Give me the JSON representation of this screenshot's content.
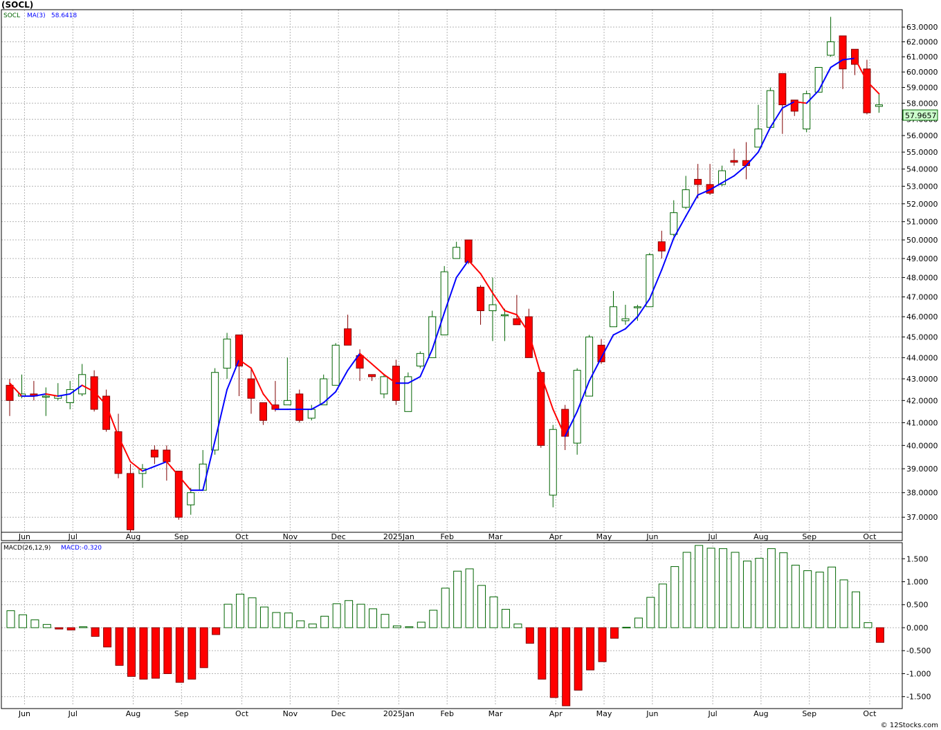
{
  "header": {
    "symbol_title": "(SOCL)"
  },
  "footer": {
    "credit": "© 12Stocks.com"
  },
  "colors": {
    "up": "#006400",
    "down": "#ff0000",
    "ma_up": "#0000ff",
    "ma_down": "#ff0000",
    "grid": "#b4b4b4",
    "last_price_bg": "#ccffcc"
  },
  "chart_data": [
    {
      "type": "candlestick",
      "title": "",
      "legend": {
        "ticker": "SOCL",
        "ma_label": "MA(3)",
        "ma_value": "58.6418"
      },
      "last_price_label": "57.9657",
      "y_ticks": [
        "37.0000",
        "38.0000",
        "39.0000",
        "40.0000",
        "41.0000",
        "42.0000",
        "43.0000",
        "44.0000",
        "45.0000",
        "46.0000",
        "47.0000",
        "48.0000",
        "49.0000",
        "50.0000",
        "51.0000",
        "52.0000",
        "53.0000",
        "54.0000",
        "55.0000",
        "56.0000",
        "57.0000",
        "58.0000",
        "59.0000",
        "60.0000",
        "61.0000",
        "62.0000",
        "63.0000"
      ],
      "y_scale": "log",
      "ylim": [
        36.4,
        64.2
      ],
      "x_labels": [
        "Jun",
        "Jul",
        "Aug",
        "Sep",
        "Oct",
        "Nov",
        "Dec",
        "2025Jan",
        "Feb",
        "Mar",
        "Apr",
        "May",
        "Jun",
        "Jul",
        "Aug",
        "Sep",
        "Oct"
      ],
      "x_label_bar_index": [
        1,
        5,
        10,
        14,
        19,
        23,
        27,
        32,
        36,
        40,
        45,
        49,
        53,
        58,
        62,
        66,
        71
      ],
      "bars": [
        {
          "o": 42.7,
          "h": 43.0,
          "l": 41.3,
          "c": 42.0
        },
        {
          "o": 42.2,
          "h": 43.2,
          "l": 42.1,
          "c": 42.3
        },
        {
          "o": 42.3,
          "h": 42.9,
          "l": 42.0,
          "c": 42.2
        },
        {
          "o": 42.2,
          "h": 42.6,
          "l": 41.3,
          "c": 42.2
        },
        {
          "o": 42.1,
          "h": 42.8,
          "l": 42.0,
          "c": 42.2
        },
        {
          "o": 41.9,
          "h": 42.9,
          "l": 41.6,
          "c": 42.5
        },
        {
          "o": 42.3,
          "h": 43.7,
          "l": 42.2,
          "c": 43.2
        },
        {
          "o": 43.1,
          "h": 43.4,
          "l": 41.5,
          "c": 41.6
        },
        {
          "o": 42.2,
          "h": 42.5,
          "l": 40.6,
          "c": 40.7
        },
        {
          "o": 40.6,
          "h": 41.4,
          "l": 38.6,
          "c": 38.8
        },
        {
          "o": 38.8,
          "h": 39.2,
          "l": 36.4,
          "c": 36.5
        },
        {
          "o": 38.8,
          "h": 39.2,
          "l": 38.2,
          "c": 39.0
        },
        {
          "o": 39.8,
          "h": 40.0,
          "l": 39.2,
          "c": 39.5
        },
        {
          "o": 39.8,
          "h": 40.0,
          "l": 38.5,
          "c": 39.3
        },
        {
          "o": 38.9,
          "h": 38.9,
          "l": 36.9,
          "c": 37.0
        },
        {
          "o": 37.5,
          "h": 38.2,
          "l": 37.1,
          "c": 38.0
        },
        {
          "o": 38.1,
          "h": 39.8,
          "l": 38.1,
          "c": 39.2
        },
        {
          "o": 39.8,
          "h": 43.5,
          "l": 39.6,
          "c": 43.3
        },
        {
          "o": 43.5,
          "h": 45.2,
          "l": 43.0,
          "c": 44.9
        },
        {
          "o": 45.1,
          "h": 45.1,
          "l": 42.2,
          "c": 43.6
        },
        {
          "o": 43.0,
          "h": 43.5,
          "l": 41.4,
          "c": 42.1
        },
        {
          "o": 41.9,
          "h": 41.9,
          "l": 40.9,
          "c": 41.1
        },
        {
          "o": 41.8,
          "h": 42.9,
          "l": 41.5,
          "c": 41.6
        },
        {
          "o": 41.8,
          "h": 44.0,
          "l": 41.8,
          "c": 42.0
        },
        {
          "o": 42.3,
          "h": 42.5,
          "l": 41.0,
          "c": 41.1
        },
        {
          "o": 41.2,
          "h": 41.8,
          "l": 41.1,
          "c": 41.6
        },
        {
          "o": 41.8,
          "h": 43.2,
          "l": 41.8,
          "c": 43.0
        },
        {
          "o": 42.7,
          "h": 44.7,
          "l": 42.7,
          "c": 44.6
        },
        {
          "o": 45.4,
          "h": 46.1,
          "l": 44.6,
          "c": 44.6
        },
        {
          "o": 44.1,
          "h": 44.4,
          "l": 42.9,
          "c": 43.5
        },
        {
          "o": 43.2,
          "h": 43.2,
          "l": 42.9,
          "c": 43.1
        },
        {
          "o": 42.3,
          "h": 43.2,
          "l": 42.1,
          "c": 43.1
        },
        {
          "o": 43.6,
          "h": 43.9,
          "l": 41.8,
          "c": 42.0
        },
        {
          "o": 41.5,
          "h": 43.3,
          "l": 41.5,
          "c": 43.1
        },
        {
          "o": 43.6,
          "h": 44.3,
          "l": 43.5,
          "c": 44.2
        },
        {
          "o": 44.0,
          "h": 46.3,
          "l": 44.0,
          "c": 46.0
        },
        {
          "o": 45.1,
          "h": 48.6,
          "l": 45.1,
          "c": 48.3
        },
        {
          "o": 49.0,
          "h": 49.9,
          "l": 49.0,
          "c": 49.6
        },
        {
          "o": 50.0,
          "h": 50.0,
          "l": 48.7,
          "c": 48.8
        },
        {
          "o": 47.5,
          "h": 47.6,
          "l": 45.6,
          "c": 46.3
        },
        {
          "o": 46.3,
          "h": 48.0,
          "l": 44.8,
          "c": 46.6
        },
        {
          "o": 46.1,
          "h": 46.4,
          "l": 44.8,
          "c": 46.1
        },
        {
          "o": 45.9,
          "h": 47.1,
          "l": 45.6,
          "c": 45.6
        },
        {
          "o": 46.0,
          "h": 46.4,
          "l": 44.0,
          "c": 44.0
        },
        {
          "o": 43.3,
          "h": 43.4,
          "l": 39.9,
          "c": 40.0
        },
        {
          "o": 37.9,
          "h": 40.9,
          "l": 37.4,
          "c": 40.7
        },
        {
          "o": 41.6,
          "h": 41.8,
          "l": 39.8,
          "c": 40.4
        },
        {
          "o": 40.1,
          "h": 43.5,
          "l": 39.6,
          "c": 43.4
        },
        {
          "o": 42.2,
          "h": 45.1,
          "l": 42.2,
          "c": 45.0
        },
        {
          "o": 44.6,
          "h": 44.9,
          "l": 43.7,
          "c": 43.8
        },
        {
          "o": 45.5,
          "h": 47.3,
          "l": 45.5,
          "c": 46.5
        },
        {
          "o": 45.8,
          "h": 46.6,
          "l": 45.6,
          "c": 45.9
        },
        {
          "o": 46.5,
          "h": 46.6,
          "l": 45.8,
          "c": 46.5
        },
        {
          "o": 46.5,
          "h": 49.3,
          "l": 46.5,
          "c": 49.2
        },
        {
          "o": 49.9,
          "h": 50.5,
          "l": 49.0,
          "c": 49.4
        },
        {
          "o": 50.3,
          "h": 52.2,
          "l": 50.2,
          "c": 51.5
        },
        {
          "o": 51.8,
          "h": 53.6,
          "l": 51.7,
          "c": 52.8
        },
        {
          "o": 53.4,
          "h": 54.3,
          "l": 52.3,
          "c": 53.1
        },
        {
          "o": 53.1,
          "h": 54.3,
          "l": 52.5,
          "c": 52.6
        },
        {
          "o": 53.1,
          "h": 54.2,
          "l": 53.0,
          "c": 53.9
        },
        {
          "o": 54.5,
          "h": 55.2,
          "l": 54.2,
          "c": 54.4
        },
        {
          "o": 54.5,
          "h": 55.6,
          "l": 53.4,
          "c": 54.2
        },
        {
          "o": 55.3,
          "h": 57.9,
          "l": 55.3,
          "c": 56.4
        },
        {
          "o": 56.5,
          "h": 59.0,
          "l": 56.5,
          "c": 58.8
        },
        {
          "o": 59.9,
          "h": 59.9,
          "l": 56.1,
          "c": 57.9
        },
        {
          "o": 58.2,
          "h": 58.2,
          "l": 57.2,
          "c": 57.5
        },
        {
          "o": 56.4,
          "h": 58.8,
          "l": 56.2,
          "c": 58.6
        },
        {
          "o": 58.7,
          "h": 60.3,
          "l": 58.7,
          "c": 60.3
        },
        {
          "o": 61.1,
          "h": 63.7,
          "l": 61.0,
          "c": 62.0
        },
        {
          "o": 62.4,
          "h": 62.4,
          "l": 58.9,
          "c": 60.2
        },
        {
          "o": 61.5,
          "h": 61.5,
          "l": 59.8,
          "c": 60.5
        },
        {
          "o": 60.2,
          "h": 60.8,
          "l": 57.3,
          "c": 57.4
        },
        {
          "o": 57.8,
          "h": 58.6,
          "l": 57.4,
          "c": 57.9
        }
      ],
      "ma3": [
        42.8,
        42.2,
        42.2,
        42.3,
        42.2,
        42.3,
        42.7,
        42.4,
        41.8,
        40.4,
        39.3,
        38.9,
        39.1,
        39.3,
        38.7,
        38.1,
        38.1,
        40.2,
        42.5,
        43.9,
        43.5,
        42.3,
        41.6,
        41.6,
        41.6,
        41.6,
        41.9,
        42.4,
        43.4,
        44.2,
        43.7,
        43.2,
        42.8,
        42.8,
        43.1,
        44.4,
        46.2,
        48.0,
        48.9,
        48.2,
        47.2,
        46.3,
        46.1,
        45.2,
        43.2,
        41.6,
        40.4,
        41.5,
        42.9,
        44.0,
        45.1,
        45.4,
        46.0,
        46.9,
        48.4,
        50.1,
        51.3,
        52.5,
        52.8,
        53.2,
        53.6,
        54.2,
        55.0,
        56.5,
        57.7,
        58.1,
        58.0,
        58.8,
        60.3,
        60.8,
        60.9,
        59.4,
        58.6
      ],
      "macd_legend": {
        "label": "MACD(26,12,9)",
        "value_text": "MACD:-0.320"
      },
      "macd_y_ticks": [
        "1.500",
        "1.000",
        "0.500",
        "0.000",
        "-0.500",
        "-1.000",
        "-1.500"
      ],
      "macd_ylim": [
        -1.7,
        1.85
      ],
      "macd": [
        0.37,
        0.28,
        0.17,
        0.07,
        -0.03,
        -0.05,
        0.02,
        -0.19,
        -0.42,
        -0.82,
        -1.06,
        -1.12,
        -1.1,
        -1.0,
        -1.19,
        -1.12,
        -0.87,
        -0.15,
        0.51,
        0.73,
        0.65,
        0.45,
        0.33,
        0.32,
        0.15,
        0.08,
        0.25,
        0.52,
        0.59,
        0.51,
        0.41,
        0.29,
        0.04,
        0.02,
        0.12,
        0.38,
        0.86,
        1.23,
        1.28,
        0.92,
        0.67,
        0.4,
        0.08,
        -0.34,
        -1.12,
        -1.52,
        -1.7,
        -1.36,
        -0.92,
        -0.74,
        -0.23,
        0.01,
        0.21,
        0.66,
        0.95,
        1.33,
        1.64,
        1.79,
        1.73,
        1.72,
        1.64,
        1.45,
        1.51,
        1.72,
        1.63,
        1.36,
        1.24,
        1.21,
        1.32,
        1.04,
        0.78,
        0.11,
        -0.32
      ]
    }
  ]
}
